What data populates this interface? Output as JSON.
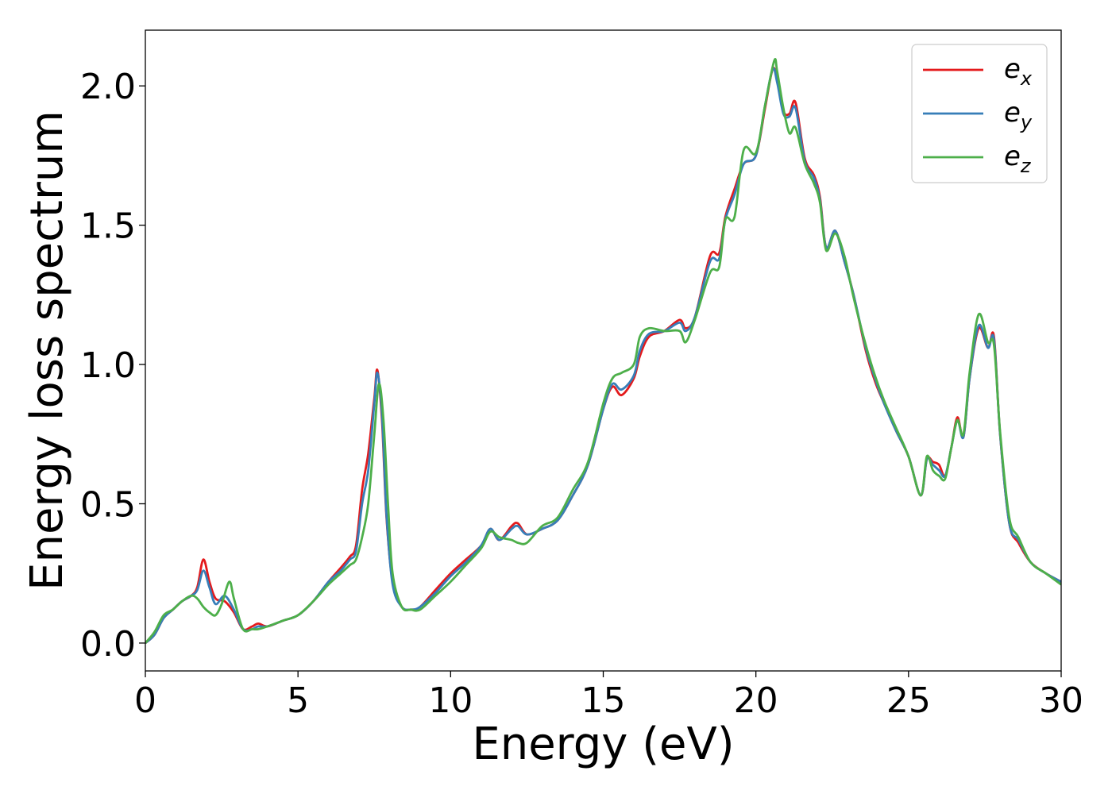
{
  "chart_data": {
    "type": "line",
    "title": "",
    "xlabel": "Energy (eV)",
    "ylabel": "Energy loss spectrum",
    "xlim": [
      0,
      30
    ],
    "ylim": [
      -0.1,
      2.2
    ],
    "xticks": [
      0,
      5,
      10,
      15,
      20,
      25,
      30
    ],
    "xtick_labels": [
      "0",
      "5",
      "10",
      "15",
      "20",
      "25",
      "30"
    ],
    "yticks": [
      0.0,
      0.5,
      1.0,
      1.5,
      2.0
    ],
    "ytick_labels": [
      "0.0",
      "0.5",
      "1.0",
      "1.5",
      "2.0"
    ],
    "grid": false,
    "legend": "top-right",
    "series": [
      {
        "name": "e_x",
        "label_base": "e",
        "label_sub": "x",
        "color": "#e41a1c",
        "points": [
          [
            0,
            0
          ],
          [
            0.3,
            0.03
          ],
          [
            0.6,
            0.09
          ],
          [
            0.9,
            0.12
          ],
          [
            1.2,
            0.15
          ],
          [
            1.5,
            0.17
          ],
          [
            1.7,
            0.2
          ],
          [
            1.9,
            0.3
          ],
          [
            2.1,
            0.22
          ],
          [
            2.3,
            0.16
          ],
          [
            2.6,
            0.15
          ],
          [
            2.9,
            0.11
          ],
          [
            3.2,
            0.05
          ],
          [
            3.5,
            0.06
          ],
          [
            3.7,
            0.07
          ],
          [
            4.0,
            0.06
          ],
          [
            4.5,
            0.08
          ],
          [
            5.0,
            0.1
          ],
          [
            5.5,
            0.15
          ],
          [
            6.0,
            0.22
          ],
          [
            6.4,
            0.27
          ],
          [
            6.7,
            0.31
          ],
          [
            6.9,
            0.35
          ],
          [
            7.1,
            0.55
          ],
          [
            7.3,
            0.68
          ],
          [
            7.5,
            0.88
          ],
          [
            7.6,
            0.98
          ],
          [
            7.75,
            0.8
          ],
          [
            7.9,
            0.45
          ],
          [
            8.1,
            0.22
          ],
          [
            8.4,
            0.13
          ],
          [
            8.7,
            0.12
          ],
          [
            9.0,
            0.13
          ],
          [
            9.5,
            0.19
          ],
          [
            10.0,
            0.25
          ],
          [
            10.5,
            0.3
          ],
          [
            11.0,
            0.35
          ],
          [
            11.3,
            0.41
          ],
          [
            11.6,
            0.37
          ],
          [
            12.0,
            0.42
          ],
          [
            12.2,
            0.43
          ],
          [
            12.5,
            0.39
          ],
          [
            13.0,
            0.41
          ],
          [
            13.5,
            0.44
          ],
          [
            14.0,
            0.53
          ],
          [
            14.5,
            0.64
          ],
          [
            15.0,
            0.84
          ],
          [
            15.3,
            0.92
          ],
          [
            15.6,
            0.89
          ],
          [
            16.0,
            0.95
          ],
          [
            16.2,
            1.03
          ],
          [
            16.5,
            1.1
          ],
          [
            17.0,
            1.12
          ],
          [
            17.5,
            1.16
          ],
          [
            17.7,
            1.13
          ],
          [
            18.0,
            1.17
          ],
          [
            18.5,
            1.39
          ],
          [
            18.8,
            1.4
          ],
          [
            19.0,
            1.53
          ],
          [
            19.3,
            1.63
          ],
          [
            19.6,
            1.72
          ],
          [
            20.0,
            1.75
          ],
          [
            20.3,
            1.92
          ],
          [
            20.55,
            2.06
          ],
          [
            20.7,
            2.02
          ],
          [
            20.9,
            1.91
          ],
          [
            21.1,
            1.9
          ],
          [
            21.3,
            1.94
          ],
          [
            21.6,
            1.74
          ],
          [
            21.9,
            1.68
          ],
          [
            22.1,
            1.6
          ],
          [
            22.3,
            1.42
          ],
          [
            22.6,
            1.48
          ],
          [
            22.9,
            1.37
          ],
          [
            23.2,
            1.25
          ],
          [
            23.6,
            1.05
          ],
          [
            23.9,
            0.94
          ],
          [
            24.2,
            0.86
          ],
          [
            24.6,
            0.76
          ],
          [
            25.0,
            0.67
          ],
          [
            25.4,
            0.53
          ],
          [
            25.6,
            0.66
          ],
          [
            25.8,
            0.65
          ],
          [
            26.0,
            0.64
          ],
          [
            26.2,
            0.6
          ],
          [
            26.4,
            0.7
          ],
          [
            26.6,
            0.81
          ],
          [
            26.8,
            0.74
          ],
          [
            27.0,
            0.95
          ],
          [
            27.3,
            1.13
          ],
          [
            27.6,
            1.06
          ],
          [
            27.8,
            1.1
          ],
          [
            28.0,
            0.75
          ],
          [
            28.3,
            0.43
          ],
          [
            28.6,
            0.36
          ],
          [
            29.0,
            0.29
          ],
          [
            29.5,
            0.25
          ],
          [
            30.0,
            0.22
          ]
        ]
      },
      {
        "name": "e_y",
        "label_base": "e",
        "label_sub": "y",
        "color": "#377eb8",
        "points": [
          [
            0,
            0
          ],
          [
            0.3,
            0.03
          ],
          [
            0.6,
            0.09
          ],
          [
            0.9,
            0.12
          ],
          [
            1.2,
            0.15
          ],
          [
            1.5,
            0.17
          ],
          [
            1.7,
            0.19
          ],
          [
            1.9,
            0.26
          ],
          [
            2.1,
            0.2
          ],
          [
            2.3,
            0.14
          ],
          [
            2.6,
            0.17
          ],
          [
            2.9,
            0.12
          ],
          [
            3.2,
            0.05
          ],
          [
            3.5,
            0.05
          ],
          [
            3.7,
            0.06
          ],
          [
            4.0,
            0.06
          ],
          [
            4.5,
            0.08
          ],
          [
            5.0,
            0.1
          ],
          [
            5.5,
            0.15
          ],
          [
            6.0,
            0.22
          ],
          [
            6.4,
            0.26
          ],
          [
            6.7,
            0.3
          ],
          [
            6.9,
            0.33
          ],
          [
            7.1,
            0.5
          ],
          [
            7.3,
            0.62
          ],
          [
            7.5,
            0.86
          ],
          [
            7.6,
            0.97
          ],
          [
            7.75,
            0.82
          ],
          [
            7.9,
            0.46
          ],
          [
            8.1,
            0.21
          ],
          [
            8.4,
            0.13
          ],
          [
            8.7,
            0.12
          ],
          [
            9.0,
            0.13
          ],
          [
            9.5,
            0.18
          ],
          [
            10.0,
            0.24
          ],
          [
            10.5,
            0.29
          ],
          [
            11.0,
            0.35
          ],
          [
            11.3,
            0.41
          ],
          [
            11.6,
            0.37
          ],
          [
            12.0,
            0.41
          ],
          [
            12.2,
            0.42
          ],
          [
            12.5,
            0.39
          ],
          [
            13.0,
            0.41
          ],
          [
            13.5,
            0.44
          ],
          [
            14.0,
            0.53
          ],
          [
            14.5,
            0.64
          ],
          [
            15.0,
            0.84
          ],
          [
            15.3,
            0.93
          ],
          [
            15.6,
            0.91
          ],
          [
            16.0,
            0.96
          ],
          [
            16.2,
            1.05
          ],
          [
            16.5,
            1.11
          ],
          [
            17.0,
            1.12
          ],
          [
            17.5,
            1.15
          ],
          [
            17.7,
            1.12
          ],
          [
            18.0,
            1.17
          ],
          [
            18.5,
            1.37
          ],
          [
            18.8,
            1.38
          ],
          [
            19.0,
            1.52
          ],
          [
            19.3,
            1.61
          ],
          [
            19.6,
            1.72
          ],
          [
            20.0,
            1.75
          ],
          [
            20.3,
            1.93
          ],
          [
            20.55,
            2.06
          ],
          [
            20.7,
            2.01
          ],
          [
            20.9,
            1.9
          ],
          [
            21.1,
            1.89
          ],
          [
            21.3,
            1.92
          ],
          [
            21.6,
            1.73
          ],
          [
            21.9,
            1.67
          ],
          [
            22.1,
            1.59
          ],
          [
            22.3,
            1.42
          ],
          [
            22.6,
            1.48
          ],
          [
            22.9,
            1.37
          ],
          [
            23.2,
            1.25
          ],
          [
            23.6,
            1.06
          ],
          [
            23.9,
            0.95
          ],
          [
            24.2,
            0.86
          ],
          [
            24.6,
            0.76
          ],
          [
            25.0,
            0.67
          ],
          [
            25.4,
            0.53
          ],
          [
            25.6,
            0.66
          ],
          [
            25.8,
            0.64
          ],
          [
            26.0,
            0.62
          ],
          [
            26.2,
            0.6
          ],
          [
            26.4,
            0.7
          ],
          [
            26.6,
            0.8
          ],
          [
            26.8,
            0.74
          ],
          [
            27.0,
            0.95
          ],
          [
            27.3,
            1.14
          ],
          [
            27.6,
            1.06
          ],
          [
            27.8,
            1.09
          ],
          [
            28.0,
            0.75
          ],
          [
            28.3,
            0.43
          ],
          [
            28.6,
            0.37
          ],
          [
            29.0,
            0.29
          ],
          [
            29.5,
            0.25
          ],
          [
            30.0,
            0.22
          ]
        ]
      },
      {
        "name": "e_z",
        "label_base": "e",
        "label_sub": "z",
        "color": "#4daf4a",
        "points": [
          [
            0,
            0
          ],
          [
            0.3,
            0.04
          ],
          [
            0.6,
            0.1
          ],
          [
            0.9,
            0.12
          ],
          [
            1.2,
            0.15
          ],
          [
            1.5,
            0.17
          ],
          [
            1.7,
            0.16
          ],
          [
            1.9,
            0.13
          ],
          [
            2.1,
            0.11
          ],
          [
            2.3,
            0.1
          ],
          [
            2.5,
            0.14
          ],
          [
            2.75,
            0.22
          ],
          [
            2.9,
            0.16
          ],
          [
            3.2,
            0.05
          ],
          [
            3.5,
            0.05
          ],
          [
            3.7,
            0.05
          ],
          [
            4.0,
            0.06
          ],
          [
            4.5,
            0.08
          ],
          [
            5.0,
            0.1
          ],
          [
            5.5,
            0.15
          ],
          [
            6.0,
            0.21
          ],
          [
            6.4,
            0.25
          ],
          [
            6.7,
            0.28
          ],
          [
            6.9,
            0.3
          ],
          [
            7.1,
            0.38
          ],
          [
            7.3,
            0.5
          ],
          [
            7.5,
            0.75
          ],
          [
            7.65,
            0.93
          ],
          [
            7.8,
            0.8
          ],
          [
            7.95,
            0.5
          ],
          [
            8.1,
            0.25
          ],
          [
            8.4,
            0.13
          ],
          [
            8.7,
            0.12
          ],
          [
            9.0,
            0.12
          ],
          [
            9.5,
            0.17
          ],
          [
            10.0,
            0.22
          ],
          [
            10.5,
            0.28
          ],
          [
            11.0,
            0.34
          ],
          [
            11.3,
            0.4
          ],
          [
            11.6,
            0.38
          ],
          [
            12.0,
            0.37
          ],
          [
            12.2,
            0.36
          ],
          [
            12.5,
            0.36
          ],
          [
            13.0,
            0.42
          ],
          [
            13.5,
            0.45
          ],
          [
            14.0,
            0.55
          ],
          [
            14.5,
            0.65
          ],
          [
            15.0,
            0.86
          ],
          [
            15.3,
            0.95
          ],
          [
            15.6,
            0.97
          ],
          [
            16.0,
            1.0
          ],
          [
            16.2,
            1.1
          ],
          [
            16.5,
            1.13
          ],
          [
            17.0,
            1.12
          ],
          [
            17.5,
            1.12
          ],
          [
            17.7,
            1.08
          ],
          [
            18.0,
            1.16
          ],
          [
            18.5,
            1.33
          ],
          [
            18.8,
            1.35
          ],
          [
            19.0,
            1.52
          ],
          [
            19.3,
            1.53
          ],
          [
            19.6,
            1.77
          ],
          [
            20.0,
            1.76
          ],
          [
            20.3,
            1.93
          ],
          [
            20.6,
            2.09
          ],
          [
            20.7,
            2.05
          ],
          [
            20.9,
            1.92
          ],
          [
            21.1,
            1.83
          ],
          [
            21.3,
            1.85
          ],
          [
            21.6,
            1.72
          ],
          [
            21.9,
            1.65
          ],
          [
            22.1,
            1.58
          ],
          [
            22.3,
            1.41
          ],
          [
            22.6,
            1.47
          ],
          [
            22.9,
            1.39
          ],
          [
            23.2,
            1.24
          ],
          [
            23.6,
            1.07
          ],
          [
            23.9,
            0.96
          ],
          [
            24.2,
            0.87
          ],
          [
            24.6,
            0.77
          ],
          [
            25.0,
            0.67
          ],
          [
            25.4,
            0.53
          ],
          [
            25.6,
            0.67
          ],
          [
            25.8,
            0.62
          ],
          [
            26.0,
            0.6
          ],
          [
            26.2,
            0.59
          ],
          [
            26.4,
            0.7
          ],
          [
            26.6,
            0.8
          ],
          [
            26.8,
            0.75
          ],
          [
            27.0,
            0.97
          ],
          [
            27.3,
            1.18
          ],
          [
            27.6,
            1.08
          ],
          [
            27.8,
            1.07
          ],
          [
            28.0,
            0.76
          ],
          [
            28.3,
            0.45
          ],
          [
            28.6,
            0.38
          ],
          [
            29.0,
            0.29
          ],
          [
            29.5,
            0.25
          ],
          [
            30.0,
            0.21
          ]
        ]
      }
    ]
  }
}
